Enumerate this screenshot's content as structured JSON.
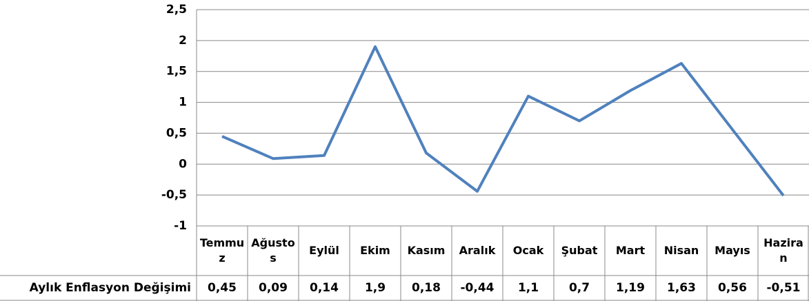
{
  "chart_data": {
    "type": "line",
    "categories": [
      "Temmuz",
      "Ağustos",
      "Eylül",
      "Ekim",
      "Kasım",
      "Aralık",
      "Ocak",
      "Şubat",
      "Mart",
      "Nisan",
      "Mayıs",
      "Haziran"
    ],
    "series": [
      {
        "name": "Aylık Enflasyon Değişimi",
        "color": "#4f81bd",
        "values": [
          0.45,
          0.09,
          0.14,
          1.9,
          0.18,
          -0.44,
          1.1,
          0.7,
          1.19,
          1.63,
          0.56,
          -0.51
        ],
        "value_labels": [
          "0,45",
          "0,09",
          "0,14",
          "1,9",
          "0,18",
          "-0,44",
          "1,1",
          "0,7",
          "1,19",
          "1,63",
          "0,56",
          "-0,51"
        ]
      }
    ],
    "ylim": [
      -1,
      2.5
    ],
    "yticks": [
      {
        "value": 2.5,
        "label": "2,5"
      },
      2,
      {
        "value": 1.5,
        "label": "1,5"
      },
      1,
      {
        "value": 0.5,
        "label": "0,5"
      },
      0,
      {
        "value": -0.5,
        "label": "-0,5"
      },
      -1
    ],
    "grid": true
  }
}
